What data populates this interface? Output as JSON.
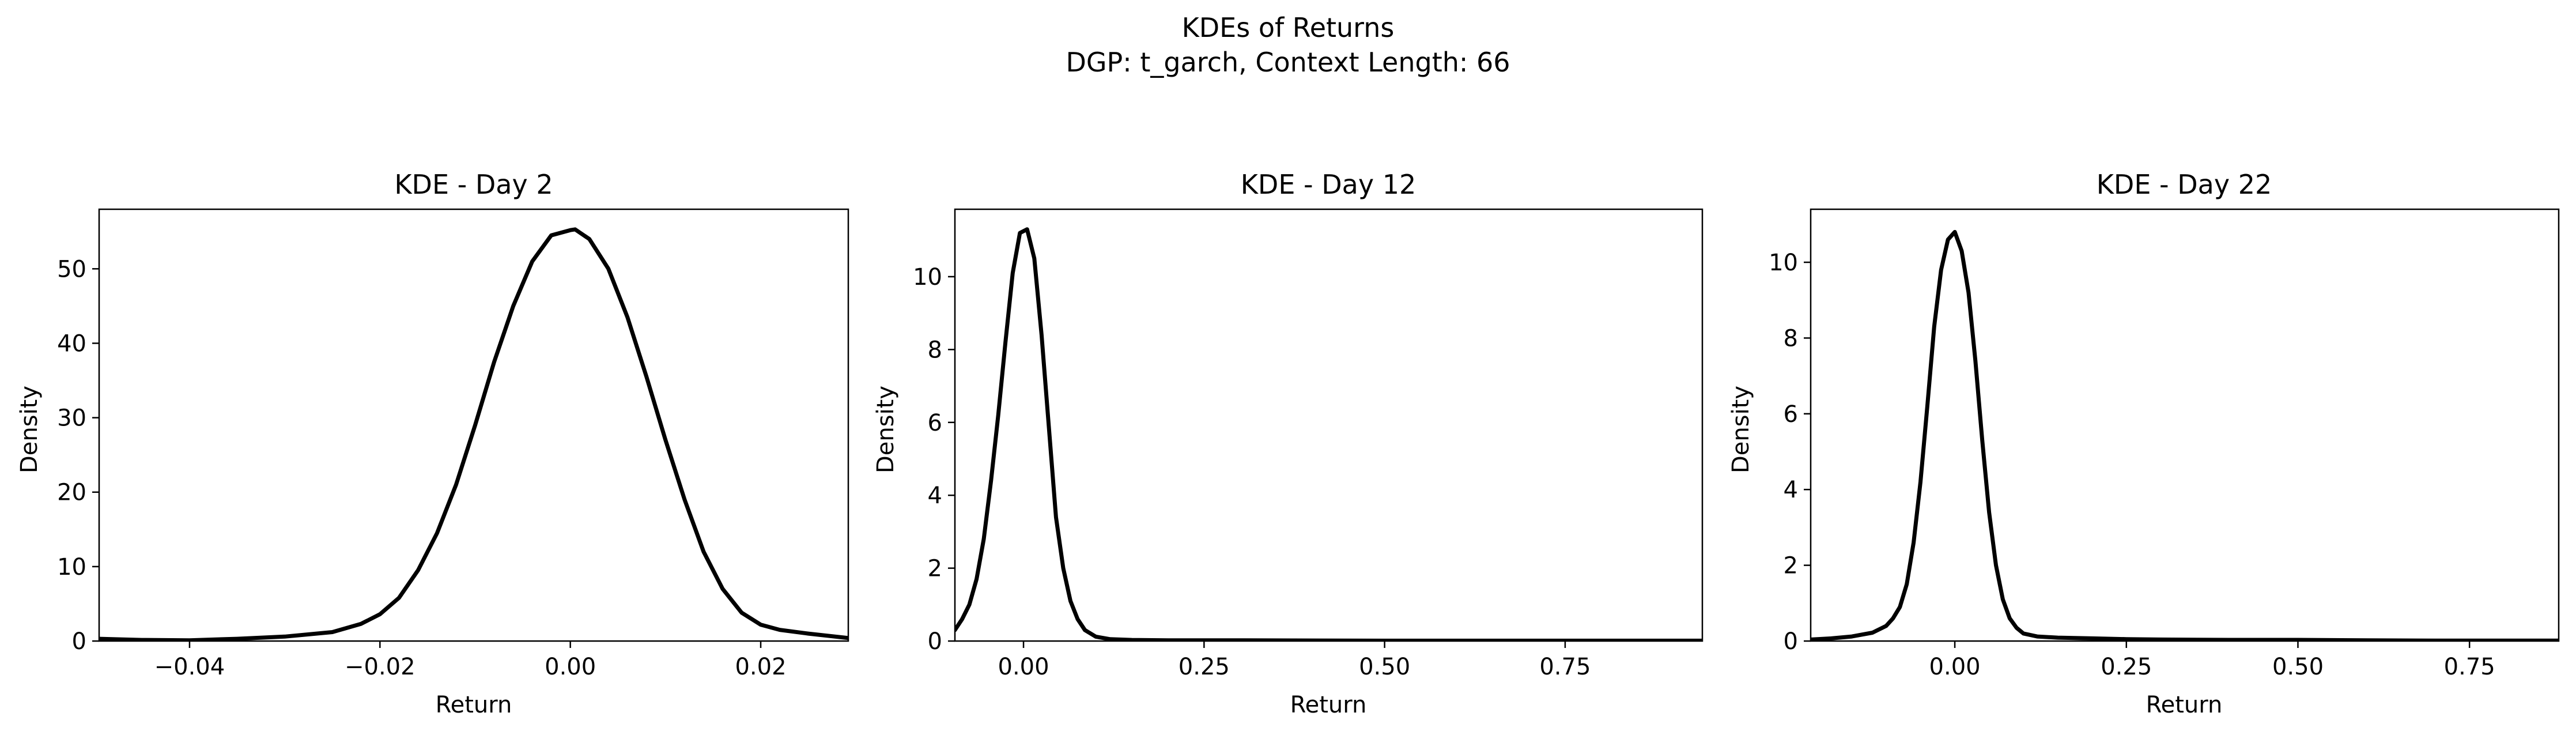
{
  "figure": {
    "title": "KDEs of Returns",
    "subtitle": "DGP: t_garch, Context Length: 66"
  },
  "chart_data": [
    {
      "type": "line",
      "title": "KDE - Day 2",
      "xlabel": "Return",
      "ylabel": "Density",
      "xlim": [
        -0.0495,
        0.0292
      ],
      "ylim": [
        0,
        58
      ],
      "xticks": [
        -0.04,
        -0.02,
        0.0,
        0.02
      ],
      "xtick_labels": [
        "−0.04",
        "−0.02",
        "0.00",
        "0.02"
      ],
      "yticks": [
        0,
        10,
        20,
        30,
        40,
        50
      ],
      "ytick_labels": [
        "0",
        "10",
        "20",
        "30",
        "40",
        "50"
      ],
      "grid": false,
      "series": [
        {
          "color": "#000000",
          "x": [
            -0.0495,
            -0.045,
            -0.04,
            -0.035,
            -0.03,
            -0.025,
            -0.022,
            -0.02,
            -0.018,
            -0.016,
            -0.014,
            -0.012,
            -0.01,
            -0.008,
            -0.006,
            -0.004,
            -0.002,
            0.0,
            0.0005,
            0.002,
            0.004,
            0.006,
            0.008,
            0.01,
            0.012,
            0.014,
            0.016,
            0.018,
            0.02,
            0.022,
            0.025,
            0.0292
          ],
          "y": [
            0.3,
            0.15,
            0.1,
            0.3,
            0.6,
            1.2,
            2.3,
            3.6,
            5.8,
            9.5,
            14.5,
            21.0,
            29.0,
            37.5,
            45.0,
            51.0,
            54.5,
            55.2,
            55.3,
            54.0,
            50.0,
            43.5,
            35.5,
            27.0,
            19.0,
            12.0,
            7.0,
            3.8,
            2.2,
            1.5,
            1.0,
            0.4
          ]
        }
      ]
    },
    {
      "type": "line",
      "title": "KDE - Day 12",
      "xlabel": "Return",
      "ylabel": "Density",
      "xlim": [
        -0.095,
        0.94
      ],
      "ylim": [
        0,
        11.85
      ],
      "xticks": [
        0.0,
        0.25,
        0.5,
        0.75
      ],
      "xtick_labels": [
        "0.00",
        "0.25",
        "0.50",
        "0.75"
      ],
      "yticks": [
        0,
        2,
        4,
        6,
        8,
        10
      ],
      "ytick_labels": [
        "0",
        "2",
        "4",
        "6",
        "8",
        "10"
      ],
      "grid": false,
      "series": [
        {
          "color": "#000000",
          "x": [
            -0.095,
            -0.085,
            -0.075,
            -0.065,
            -0.055,
            -0.045,
            -0.035,
            -0.025,
            -0.015,
            -0.005,
            0.005,
            0.015,
            0.025,
            0.035,
            0.045,
            0.055,
            0.065,
            0.075,
            0.085,
            0.1,
            0.12,
            0.15,
            0.2,
            0.3,
            0.5,
            0.7,
            0.94
          ],
          "y": [
            0.3,
            0.6,
            1.0,
            1.7,
            2.8,
            4.4,
            6.2,
            8.2,
            10.1,
            11.2,
            11.3,
            10.5,
            8.4,
            5.9,
            3.4,
            2.0,
            1.1,
            0.6,
            0.3,
            0.12,
            0.05,
            0.03,
            0.02,
            0.02,
            0.01,
            0.01,
            0.01
          ]
        }
      ]
    },
    {
      "type": "line",
      "title": "KDE - Day 22",
      "xlabel": "Return",
      "ylabel": "Density",
      "xlim": [
        -0.21,
        0.88
      ],
      "ylim": [
        0,
        11.4
      ],
      "xticks": [
        0.0,
        0.25,
        0.5,
        0.75
      ],
      "xtick_labels": [
        "0.00",
        "0.25",
        "0.50",
        "0.75"
      ],
      "yticks": [
        0,
        2,
        4,
        6,
        8,
        10
      ],
      "ytick_labels": [
        "0",
        "2",
        "4",
        "6",
        "8",
        "10"
      ],
      "grid": false,
      "series": [
        {
          "color": "#000000",
          "x": [
            -0.21,
            -0.18,
            -0.15,
            -0.12,
            -0.1,
            -0.09,
            -0.08,
            -0.07,
            -0.06,
            -0.05,
            -0.04,
            -0.03,
            -0.02,
            -0.01,
            0.0,
            0.01,
            0.02,
            0.03,
            0.04,
            0.05,
            0.06,
            0.07,
            0.08,
            0.09,
            0.1,
            0.12,
            0.15,
            0.2,
            0.25,
            0.3,
            0.4,
            0.5,
            0.6,
            0.7,
            0.88
          ],
          "y": [
            0.04,
            0.07,
            0.12,
            0.22,
            0.4,
            0.6,
            0.9,
            1.5,
            2.6,
            4.2,
            6.2,
            8.3,
            9.8,
            10.6,
            10.8,
            10.3,
            9.2,
            7.4,
            5.3,
            3.4,
            2.0,
            1.1,
            0.6,
            0.35,
            0.2,
            0.12,
            0.09,
            0.07,
            0.05,
            0.04,
            0.03,
            0.03,
            0.02,
            0.01,
            0.01
          ]
        }
      ]
    }
  ]
}
